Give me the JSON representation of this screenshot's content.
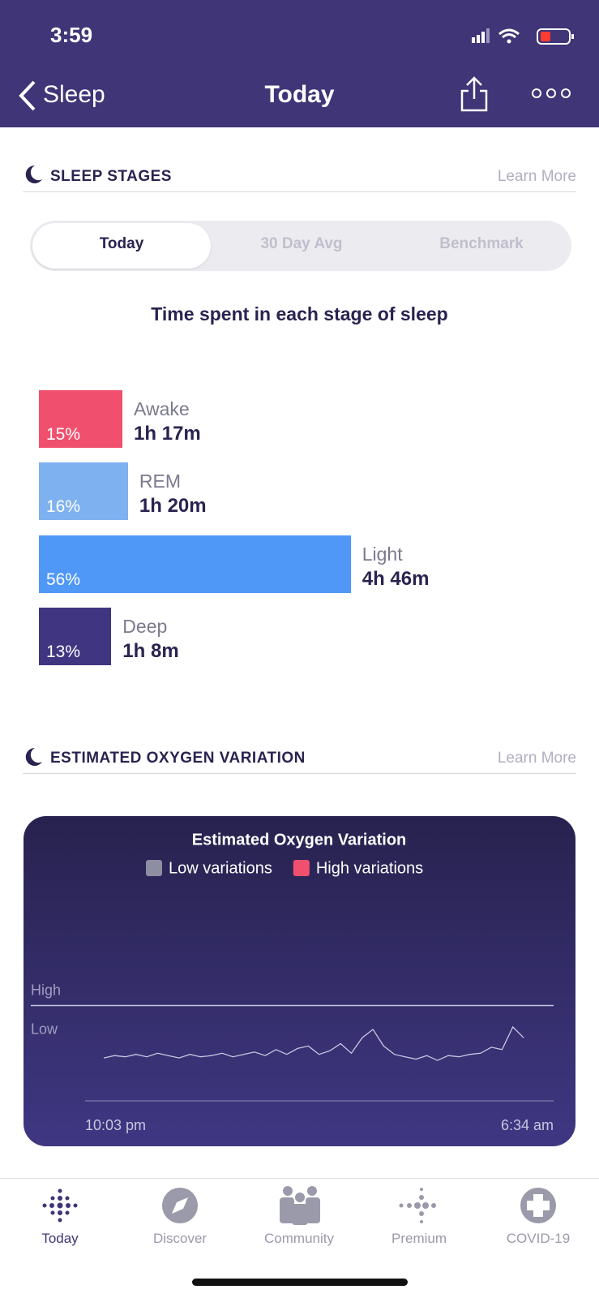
{
  "status_bar": {
    "time": "3:59"
  },
  "nav": {
    "back": "Sleep",
    "title": "Today"
  },
  "sleep_stages": {
    "heading": "SLEEP STAGES",
    "learn_more": "Learn More",
    "tabs": [
      "Today",
      "30 Day Avg",
      "Benchmark"
    ],
    "subtitle": "Time spent in each stage of sleep",
    "stages": [
      {
        "name": "Awake",
        "value": 15,
        "value_label": "15%",
        "duration": "1h 17m",
        "color": "#f0506e"
      },
      {
        "name": "REM",
        "value": 16,
        "value_label": "16%",
        "duration": "1h 20m",
        "color": "#7eb1f0"
      },
      {
        "name": "Light",
        "value": 56,
        "value_label": "56%",
        "duration": "4h 46m",
        "color": "#4f98f7"
      },
      {
        "name": "Deep",
        "value": 13,
        "value_label": "13%",
        "duration": "1h 8m",
        "color": "#3f3580"
      }
    ]
  },
  "oxygen": {
    "heading": "ESTIMATED OXYGEN VARIATION",
    "learn_more": "Learn More",
    "chart_data": {
      "type": "line",
      "title": "Estimated Oxygen Variation",
      "legend": [
        {
          "name": "Low variations",
          "color": "#8e8ea3"
        },
        {
          "name": "High variations",
          "color": "#f0506e"
        }
      ],
      "x_labels": [
        "10:03 pm",
        "6:34 am"
      ],
      "ylim": [
        0,
        16
      ],
      "yticks": [
        {
          "value": 8,
          "label": "High"
        },
        {
          "value": 4.7,
          "label": "Low"
        }
      ],
      "color": "#c9c6e0",
      "values": [
        3.6,
        3.8,
        3.7,
        3.9,
        3.7,
        4.0,
        3.8,
        3.6,
        3.9,
        3.7,
        3.8,
        4.0,
        3.7,
        3.9,
        4.1,
        3.8,
        4.3,
        3.9,
        4.4,
        4.6,
        3.9,
        4.2,
        4.8,
        4.0,
        5.3,
        6.0,
        4.6,
        3.9,
        3.7,
        3.5,
        3.8,
        3.4,
        3.8,
        3.7,
        3.9,
        4.0,
        4.5,
        4.3,
        6.2,
        5.3
      ]
    }
  },
  "tab_bar": [
    "Today",
    "Discover",
    "Community",
    "Premium",
    "COVID-19"
  ]
}
